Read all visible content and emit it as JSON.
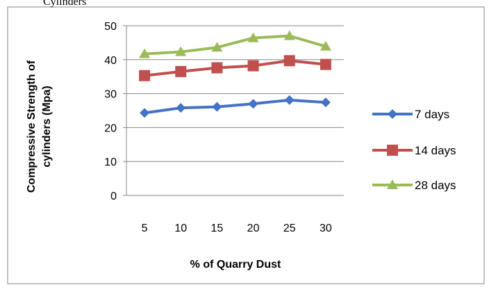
{
  "caption": "Cylinders",
  "chart_data": {
    "type": "line",
    "xlabel": "% of Quarry Dust",
    "ylabel_lines": [
      "Compressive Strength of",
      "cylinders (Mpa)"
    ],
    "categories": [
      "5",
      "10",
      "15",
      "20",
      "25",
      "30"
    ],
    "ylim": [
      0,
      50
    ],
    "yticks": [
      0,
      10,
      20,
      30,
      40,
      50
    ],
    "grid": true,
    "legend": "right",
    "series": [
      {
        "name": "7 days",
        "marker": "diamond",
        "color": "#4472C4",
        "values": [
          24.3,
          25.8,
          26.1,
          27.0,
          28.1,
          27.4
        ]
      },
      {
        "name": "14 days",
        "marker": "square",
        "color": "#C0504D",
        "values": [
          35.3,
          36.5,
          37.6,
          38.2,
          39.7,
          38.6
        ]
      },
      {
        "name": "28 days",
        "marker": "triangle",
        "color": "#9BBB59",
        "values": [
          41.7,
          42.3,
          43.6,
          46.4,
          47.0,
          43.9
        ]
      }
    ]
  }
}
